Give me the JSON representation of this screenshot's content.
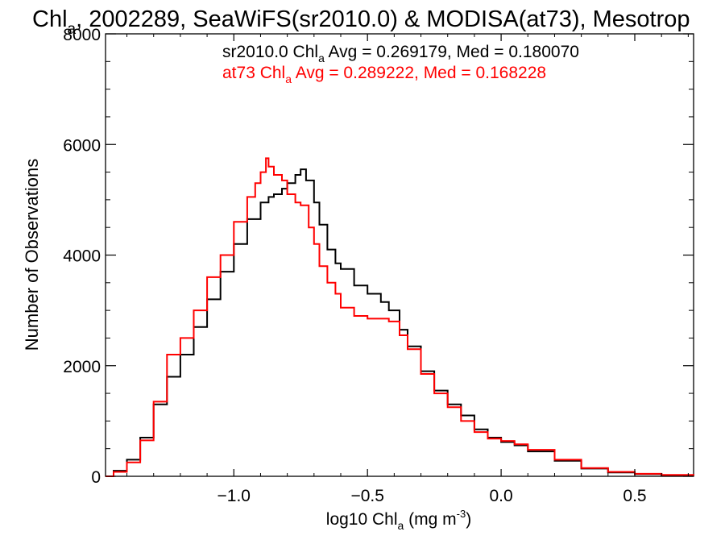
{
  "chart_data": {
    "type": "line",
    "step": true,
    "title": {
      "main": "Chl",
      "sub": "a",
      "rest": ", 2002289, SeaWiFS(sr2010.0) & MODISA(at73), Mesotrop"
    },
    "xlabel": {
      "pre": "log10 Chl",
      "sub": "a",
      "mid": " (mg m",
      "sup": "-3",
      "post": ")"
    },
    "ylabel": "Number of Observations",
    "xlim": [
      -1.48,
      0.72
    ],
    "ylim": [
      0,
      8000
    ],
    "xticks": [
      -1.0,
      -0.5,
      0.0,
      0.5
    ],
    "xtick_labels": [
      "−1.0",
      "−0.5",
      "0.0",
      "0.5"
    ],
    "yticks": [
      0,
      2000,
      4000,
      6000,
      8000
    ],
    "ytick_labels": [
      "0",
      "2000",
      "4000",
      "6000",
      "8000"
    ],
    "annotations": [
      {
        "pre": "sr2010.0 Chl",
        "sub": "a",
        "post": " Avg = 0.269179, Med = 0.180070",
        "color": "#000000"
      },
      {
        "pre": "at73 Chl",
        "sub": "a",
        "post": " Avg = 0.289222, Med = 0.168228",
        "color": "#ff0000"
      }
    ],
    "series": [
      {
        "color": "#000000",
        "x": [
          -1.48,
          -1.45,
          -1.4,
          -1.35,
          -1.3,
          -1.25,
          -1.2,
          -1.15,
          -1.1,
          -1.05,
          -1.0,
          -0.95,
          -0.9,
          -0.87,
          -0.85,
          -0.82,
          -0.8,
          -0.77,
          -0.75,
          -0.73,
          -0.7,
          -0.68,
          -0.65,
          -0.62,
          -0.6,
          -0.55,
          -0.5,
          -0.45,
          -0.42,
          -0.38,
          -0.35,
          -0.3,
          -0.25,
          -0.2,
          -0.15,
          -0.1,
          -0.05,
          0.0,
          0.05,
          0.1,
          0.2,
          0.3,
          0.4,
          0.5,
          0.6,
          0.72
        ],
        "y": [
          0,
          100,
          300,
          700,
          1300,
          1800,
          2200,
          2700,
          3200,
          3700,
          4200,
          4650,
          4950,
          5050,
          5100,
          5200,
          5300,
          5450,
          5550,
          5350,
          4950,
          4550,
          4100,
          3850,
          3750,
          3450,
          3300,
          3150,
          3000,
          2650,
          2350,
          1900,
          1550,
          1300,
          1100,
          850,
          700,
          620,
          560,
          450,
          280,
          140,
          70,
          40,
          20,
          10
        ]
      },
      {
        "color": "#ff0000",
        "x": [
          -1.48,
          -1.45,
          -1.4,
          -1.35,
          -1.3,
          -1.25,
          -1.2,
          -1.15,
          -1.1,
          -1.05,
          -1.0,
          -0.95,
          -0.92,
          -0.9,
          -0.88,
          -0.87,
          -0.85,
          -0.82,
          -0.8,
          -0.77,
          -0.75,
          -0.72,
          -0.7,
          -0.68,
          -0.65,
          -0.62,
          -0.6,
          -0.55,
          -0.5,
          -0.45,
          -0.42,
          -0.38,
          -0.35,
          -0.3,
          -0.25,
          -0.2,
          -0.15,
          -0.1,
          -0.05,
          0.0,
          0.05,
          0.1,
          0.2,
          0.3,
          0.4,
          0.5,
          0.6,
          0.72
        ],
        "y": [
          0,
          80,
          250,
          650,
          1350,
          2200,
          2500,
          3000,
          3600,
          4000,
          4600,
          5050,
          5300,
          5500,
          5750,
          5600,
          5450,
          5350,
          5100,
          4950,
          4900,
          4500,
          4200,
          3800,
          3500,
          3300,
          3050,
          2900,
          2850,
          2850,
          2800,
          2550,
          2300,
          1850,
          1500,
          1250,
          1000,
          800,
          680,
          640,
          580,
          480,
          300,
          150,
          80,
          45,
          25,
          15
        ]
      }
    ]
  }
}
